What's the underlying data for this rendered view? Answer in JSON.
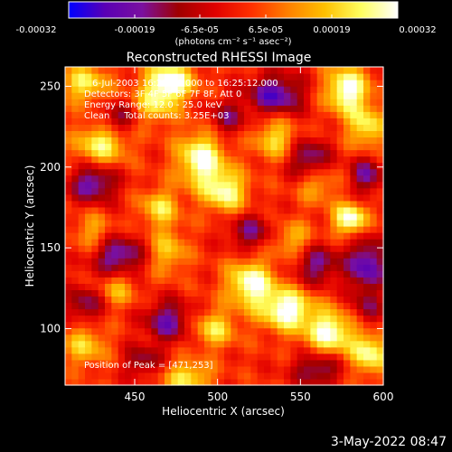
{
  "chart_data": {
    "type": "heatmap",
    "title": "Reconstructed RHESSI Image",
    "xlabel": "Heliocentric X (arcsec)",
    "ylabel": "Heliocentric Y (arcsec)",
    "xlim": [
      408,
      600
    ],
    "ylim": [
      65,
      262
    ],
    "xticks": [
      450,
      500,
      550,
      600
    ],
    "yticks": [
      100,
      150,
      200,
      250
    ],
    "colorbar": {
      "range": [
        -0.00032,
        0.00032
      ],
      "tick_values": [
        -0.00032,
        -0.00019,
        -6.5e-05,
        6.5e-05,
        0.00019,
        0.00032
      ],
      "tick_labels": [
        "-0.00032",
        "-0.00019",
        "-6.5e-05",
        "6.5e-05",
        "0.00019",
        "0.00032"
      ],
      "unit_label": "(photons cm⁻² s⁻¹ asec⁻²)",
      "colors": [
        "#0000ff",
        "#5a00b4",
        "#7a10a0",
        "#a00000",
        "#e00000",
        "#ff3000",
        "#ff8000",
        "#ffc000",
        "#ffff60",
        "#ffffff"
      ]
    },
    "annotations": {
      "time": "6-Jul-2003 16:25:06.000 to 16:25:12.000",
      "detectors": "Detectors: 3F 4F 5F 6F 7F 8F, Att 0",
      "energy": "Energy Range: 12.0 - 25.0 keV",
      "clean": "Clean     Total counts: 3.25E+03",
      "peak": "Position of Peak = [471,253]"
    },
    "peak": [
      471,
      253
    ],
    "grid_resolution": [
      48,
      50
    ],
    "value_range": [
      -0.00032,
      0.00032
    ],
    "hotspots": [
      {
        "x": 471,
        "y": 253,
        "amp": 0.00034,
        "sx": 10,
        "sy": 8
      },
      {
        "x": 420,
        "y": 252,
        "amp": 0.00022,
        "sx": 10,
        "sy": 8
      },
      {
        "x": 430,
        "y": 215,
        "amp": 0.00024,
        "sx": 11,
        "sy": 9
      },
      {
        "x": 462,
        "y": 238,
        "amp": 0.00018,
        "sx": 9,
        "sy": 8
      },
      {
        "x": 490,
        "y": 205,
        "amp": 0.0003,
        "sx": 10,
        "sy": 12
      },
      {
        "x": 505,
        "y": 185,
        "amp": 0.00026,
        "sx": 9,
        "sy": 9
      },
      {
        "x": 465,
        "y": 175,
        "amp": 0.0002,
        "sx": 8,
        "sy": 8
      },
      {
        "x": 470,
        "y": 148,
        "amp": 0.00017,
        "sx": 8,
        "sy": 10
      },
      {
        "x": 535,
        "y": 218,
        "amp": 0.0002,
        "sx": 9,
        "sy": 9
      },
      {
        "x": 578,
        "y": 248,
        "amp": 0.00032,
        "sx": 9,
        "sy": 10
      },
      {
        "x": 590,
        "y": 225,
        "amp": 0.00022,
        "sx": 8,
        "sy": 9
      },
      {
        "x": 580,
        "y": 168,
        "amp": 0.00032,
        "sx": 7,
        "sy": 7
      },
      {
        "x": 560,
        "y": 190,
        "amp": 0.00016,
        "sx": 8,
        "sy": 8
      },
      {
        "x": 520,
        "y": 128,
        "amp": 0.0003,
        "sx": 10,
        "sy": 10
      },
      {
        "x": 542,
        "y": 112,
        "amp": 0.00032,
        "sx": 11,
        "sy": 9
      },
      {
        "x": 568,
        "y": 98,
        "amp": 0.0003,
        "sx": 10,
        "sy": 9
      },
      {
        "x": 498,
        "y": 100,
        "amp": 0.0002,
        "sx": 9,
        "sy": 8
      },
      {
        "x": 482,
        "y": 70,
        "amp": 0.00022,
        "sx": 10,
        "sy": 7
      },
      {
        "x": 420,
        "y": 90,
        "amp": 0.00018,
        "sx": 9,
        "sy": 9
      },
      {
        "x": 425,
        "y": 160,
        "amp": 0.00014,
        "sx": 8,
        "sy": 8
      },
      {
        "x": 592,
        "y": 85,
        "amp": 0.00026,
        "sx": 8,
        "sy": 9
      },
      {
        "x": 545,
        "y": 155,
        "amp": 0.00016,
        "sx": 9,
        "sy": 8
      },
      {
        "x": 440,
        "y": 125,
        "amp": 0.00015,
        "sx": 8,
        "sy": 8
      },
      {
        "x": 425,
        "y": 190,
        "amp": -0.00024,
        "sx": 10,
        "sy": 8
      },
      {
        "x": 440,
        "y": 230,
        "amp": -0.00018,
        "sx": 8,
        "sy": 7
      },
      {
        "x": 535,
        "y": 245,
        "amp": -0.00026,
        "sx": 12,
        "sy": 9
      },
      {
        "x": 555,
        "y": 205,
        "amp": -0.00022,
        "sx": 9,
        "sy": 9
      },
      {
        "x": 560,
        "y": 140,
        "amp": -0.0002,
        "sx": 10,
        "sy": 9
      },
      {
        "x": 590,
        "y": 140,
        "amp": -0.00026,
        "sx": 8,
        "sy": 12
      },
      {
        "x": 590,
        "y": 195,
        "amp": -0.0002,
        "sx": 7,
        "sy": 8
      },
      {
        "x": 520,
        "y": 160,
        "amp": -0.00018,
        "sx": 10,
        "sy": 8
      },
      {
        "x": 470,
        "y": 105,
        "amp": -0.00022,
        "sx": 10,
        "sy": 9
      },
      {
        "x": 440,
        "y": 145,
        "amp": -0.00024,
        "sx": 11,
        "sy": 9
      },
      {
        "x": 420,
        "y": 115,
        "amp": -0.00018,
        "sx": 8,
        "sy": 8
      },
      {
        "x": 560,
        "y": 75,
        "amp": -0.0002,
        "sx": 10,
        "sy": 7
      },
      {
        "x": 455,
        "y": 80,
        "amp": -0.00016,
        "sx": 8,
        "sy": 7
      },
      {
        "x": 505,
        "y": 230,
        "amp": -0.00016,
        "sx": 8,
        "sy": 8
      },
      {
        "x": 590,
        "y": 112,
        "amp": -0.00014,
        "sx": 6,
        "sy": 8
      }
    ]
  },
  "datestamp": "3-May-2022 08:47"
}
